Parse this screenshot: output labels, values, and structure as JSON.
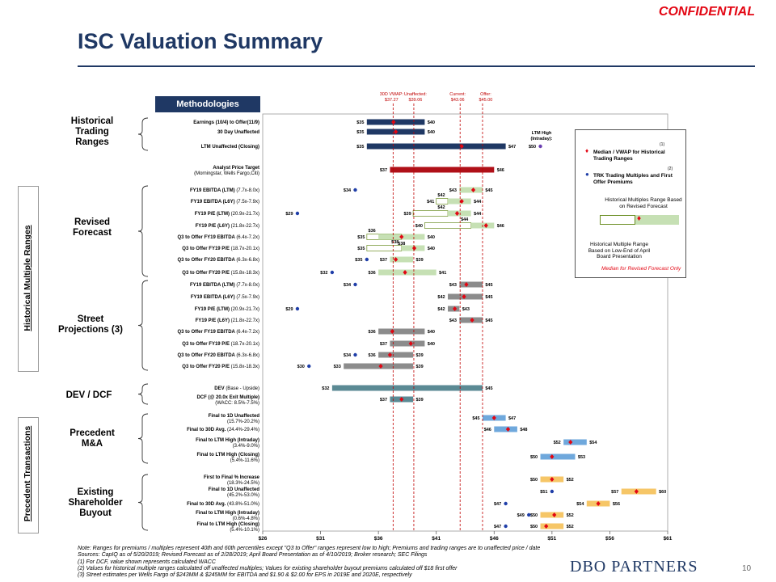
{
  "confidential": "CONFIDENTIAL",
  "title": "ISC Valuation Summary",
  "methodologies_label": "Methodologies",
  "side_labels": {
    "historical": "Historical Multiple Ranges",
    "precedent": "Precedent Transactions"
  },
  "groups": [
    {
      "id": "hist",
      "label": "Historical Trading Ranges"
    },
    {
      "id": "rev",
      "label": "Revised Forecast"
    },
    {
      "id": "street",
      "label": "Street Projections (3)"
    },
    {
      "id": "dcf",
      "label": "DEV / DCF"
    },
    {
      "id": "ma",
      "label": "Precedent M&A"
    },
    {
      "id": "buyout",
      "label": "Existing Shareholder Buyout"
    }
  ],
  "ref_lines": [
    {
      "label": "30D VWAP: $37.27",
      "value": 37.27
    },
    {
      "label": "Unaffected: $39.06",
      "value": 39.06
    },
    {
      "label": "Current: $43.06",
      "value": 43.06
    },
    {
      "label": "Offer: $45.00",
      "value": 45.0
    }
  ],
  "ltm_high_label": "LTM High (Intraday):",
  "legend": {
    "median_label": "Median / VWAP for Historical Trading Ranges",
    "median_sup": "(1)",
    "trk_label": "TRK Trading Multiples and First Offer Premiums",
    "trk_sup": "(2)",
    "revised_label": "Historical Multiples Range Based on Revised Forecast",
    "april_label": "Historical Multiple Range Based on Low-End of April Board Presentation",
    "median_note": "Median for Revised Forecast Only"
  },
  "notes": [
    "Note: Ranges for premiums / multiples represent 40th and 60th percentiles except \"Q3 to Offer\" ranges represent low to high; Premiums and trading ranges are to unaffected price / date",
    "Sources: CapIQ as of 5/20/2019; Revised Forecast as of 2/28/2019; April Board Presentation as of 4/10/2019; Broker research; SEC Filings",
    "(1)      For DCF, value shown represents calculated WACC",
    "(2)      Values for historical multiple ranges calculated off unaffected multiples; Values for existing shareholder buyout premiums calculated off $18 first offer",
    "(3)      Street estimates per Wells Fargo of $243MM & $245MM for EBITDA and $1.90 & $2.00 for EPS in 2019E and 2020E, respectively"
  ],
  "logo": "DBO PARTNERS",
  "page_number": "10",
  "chart_data": {
    "type": "bar",
    "orientation": "horizontal-range",
    "xlim": [
      26,
      61
    ],
    "x_ticks": [
      "$26",
      "$31",
      "$36",
      "$41",
      "$46",
      "$51",
      "$56",
      "$61"
    ],
    "x_tick_values": [
      26,
      31,
      36,
      41,
      46,
      51,
      56,
      61
    ],
    "colors": {
      "navy": "#1f3864",
      "red": "#b01018",
      "green": "#c6e0b4",
      "gray": "#8c8c8c",
      "teal": "#5b8a94",
      "blue": "#6fa8dc",
      "gold": "#f6c667",
      "median": "#e30613",
      "dot": "#1f3ea8"
    },
    "rows": [
      {
        "group": "hist",
        "label": "Earnings (10/4) to Offer(11/9)",
        "sub": "",
        "low": 35,
        "high": 40,
        "low_label": "$35",
        "high_label": "$40",
        "color": "navy",
        "median": 37.3,
        "dots": []
      },
      {
        "group": "hist",
        "label": "30 Day Unaffected",
        "sub": "",
        "low": 35,
        "high": 40,
        "low_label": "$35",
        "high_label": "$40",
        "color": "navy",
        "median": 37.5,
        "dots": []
      },
      {
        "group": "hist",
        "label": "LTM Unaffected (Closing)",
        "sub": "",
        "low": 35,
        "high": 47,
        "low_label": "$35",
        "high_label": "$47",
        "color": "navy",
        "median": 43.2,
        "dots": [
          {
            "value": 50,
            "label": "$50",
            "color": "#6a3fb0"
          }
        ]
      },
      {
        "group": "hist",
        "label": "Analyst Price Target",
        "sub": "(Morningstar, Wells Fargo,Citi)",
        "low": 37,
        "high": 46,
        "low_label": "$37",
        "high_label": "$46",
        "color": "red",
        "median": null,
        "dots": []
      },
      {
        "group": "rev",
        "label": "FY19 EBITDA (LTM)",
        "sub": "(7.7x-8.0x)",
        "low": 43,
        "high": 45,
        "low_label": "$43",
        "high_label": "$45",
        "color": "green",
        "median": 44.2,
        "dots": [
          {
            "value": 34,
            "label": "$34"
          }
        ]
      },
      {
        "group": "rev",
        "label": "FY19 EBITDA (L6Y)",
        "sub": "(7.5x-7.9x)",
        "low": 42,
        "high": 44,
        "low_label": "$42",
        "high_label": "$44",
        "color": "green",
        "median": 43.2,
        "dots": [],
        "april": [
          41,
          42
        ],
        "april_labels": [
          "$41",
          ""
        ]
      },
      {
        "group": "rev",
        "label": "FY19 P/E (LTM)",
        "sub": "(20.9x-21.7x)",
        "low": 42,
        "high": 44,
        "low_label": "$42",
        "high_label": "$44",
        "color": "green",
        "median": 42.8,
        "dots": [
          {
            "value": 29,
            "label": "$29"
          }
        ],
        "april": [
          39,
          42
        ],
        "april_labels": [
          "$39",
          ""
        ]
      },
      {
        "group": "rev",
        "label": "FY19 P/E (L6Y)",
        "sub": "(21.8x-22.7x)",
        "low": 44,
        "high": 46,
        "low_label": "$44",
        "high_label": "$46",
        "color": "green",
        "median": 45.3,
        "dots": [],
        "april": [
          40,
          44
        ],
        "april_labels": [
          "$40",
          ""
        ]
      },
      {
        "group": "rev",
        "label": "Q3 to Offer FY19 EBITDA",
        "sub": "(6.4x-7.2x)",
        "low": 36,
        "high": 40,
        "low_label": "$36",
        "high_label": "$40",
        "color": "green",
        "median": 38.0,
        "dots": [],
        "april": [
          35,
          38
        ],
        "april_labels": [
          "$35",
          "$38"
        ]
      },
      {
        "group": "rev",
        "label": "Q3 to Offer FY19 P/E",
        "sub": "(18.7x-20.1x)",
        "low": 38,
        "high": 40,
        "low_label": "$38",
        "high_label": "$40",
        "color": "green",
        "median": 39.1,
        "dots": [],
        "april": [
          35,
          38
        ],
        "april_labels": [
          "$35",
          ""
        ]
      },
      {
        "group": "rev",
        "label": "Q3 to Offer FY20 EBITDA",
        "sub": "(6.3x-6.8x)",
        "low": 37,
        "high": 39,
        "low_label": "$37",
        "high_label": "$39",
        "color": "green",
        "median": 37.5,
        "dots": [
          {
            "value": 35,
            "label": "$35"
          }
        ]
      },
      {
        "group": "rev",
        "label": "Q3 to Offer FY20 P/E",
        "sub": "(15.8x-18.3x)",
        "low": 36,
        "high": 41,
        "low_label": "$36",
        "high_label": "$41",
        "color": "green",
        "median": 38.3,
        "dots": [
          {
            "value": 32,
            "label": "$32"
          }
        ]
      },
      {
        "group": "street",
        "label": "FY19 EBITDA (LTM)",
        "sub": "(7.7x-8.0x)",
        "low": 43,
        "high": 45,
        "low_label": "$43",
        "high_label": "$45",
        "color": "gray",
        "median": 43.6,
        "dots": [
          {
            "value": 34,
            "label": "$34"
          }
        ]
      },
      {
        "group": "street",
        "label": "FY19 EBITDA (L6Y)",
        "sub": "(7.5x-7.9x)",
        "low": 42,
        "high": 45,
        "low_label": "$42",
        "high_label": "$45",
        "color": "gray",
        "median": 43.4,
        "dots": []
      },
      {
        "group": "street",
        "label": "FY19 P/E (LTM)",
        "sub": "(20.9x-21.7x)",
        "low": 42,
        "high": 43,
        "low_label": "$42",
        "high_label": "$43",
        "color": "gray",
        "median": 42.6,
        "dots": [
          {
            "value": 29,
            "label": "$29"
          }
        ]
      },
      {
        "group": "street",
        "label": "FY19 P/E (L6Y)",
        "sub": "(21.8x-22.7x)",
        "low": 43,
        "high": 45,
        "low_label": "$43",
        "high_label": "$45",
        "color": "gray",
        "median": 44.1,
        "dots": []
      },
      {
        "group": "street",
        "label": "Q3 to Offer FY19 EBITDA",
        "sub": "(6.4x-7.2x)",
        "low": 36,
        "high": 40,
        "low_label": "$36",
        "high_label": "$40",
        "color": "gray",
        "median": 37.2,
        "dots": []
      },
      {
        "group": "street",
        "label": "Q3 to Offer FY19 P/E",
        "sub": "(18.7x-20.1x)",
        "low": 37,
        "high": 40,
        "low_label": "$37",
        "high_label": "$40",
        "color": "gray",
        "median": 38.8,
        "dots": []
      },
      {
        "group": "street",
        "label": "Q3 to Offer FY20 EBITDA",
        "sub": "(6.3x-6.8x)",
        "low": 36,
        "high": 39,
        "low_label": "$36",
        "high_label": "$39",
        "color": "gray",
        "median": 37.0,
        "dots": [
          {
            "value": 34,
            "label": "$34"
          }
        ]
      },
      {
        "group": "street",
        "label": "Q3 to Offer FY20 P/E",
        "sub": "(15.8x-18.3x)",
        "low": 33,
        "high": 39,
        "low_label": "$33",
        "high_label": "$39",
        "color": "gray",
        "median": 36.2,
        "dots": [
          {
            "value": 30,
            "label": "$30"
          }
        ]
      },
      {
        "group": "dcf",
        "label": "DEV",
        "sub": "(Base - Upside)",
        "low": 32,
        "high": 45,
        "low_label": "$32",
        "high_label": "$45",
        "color": "teal",
        "median": null,
        "dots": []
      },
      {
        "group": "dcf",
        "label": "DCF (@ 20.0x Exit Multiple)",
        "sub": "(WACC: 8.5%-7.5%)",
        "low": 37,
        "high": 39,
        "low_label": "$37",
        "high_label": "$39",
        "color": "teal",
        "median": 38.0,
        "dots": []
      },
      {
        "group": "ma",
        "label": "Final to 1D Unaffected",
        "sub": "(15.7%-20.2%)",
        "low": 45,
        "high": 47,
        "low_label": "$45",
        "high_label": "$47",
        "color": "blue",
        "median": 46.0,
        "dots": []
      },
      {
        "group": "ma",
        "label": "Final to 30D Avg.",
        "sub": "(24.4%-29.4%)",
        "low": 46,
        "high": 48,
        "low_label": "$46",
        "high_label": "$48",
        "color": "blue",
        "median": 47.2,
        "dots": []
      },
      {
        "group": "ma",
        "label": "Final to LTM High (Intraday)",
        "sub": "(3.4%-9.0%)",
        "low": 52,
        "high": 54,
        "low_label": "$52",
        "high_label": "$54",
        "color": "blue",
        "median": 52.6,
        "dots": []
      },
      {
        "group": "ma",
        "label": "Final to LTM High (Closing)",
        "sub": "(5.4%-11.6%)",
        "low": 50,
        "high": 53,
        "low_label": "$50",
        "high_label": "$53",
        "color": "blue",
        "median": 51.0,
        "dots": []
      },
      {
        "group": "buyout",
        "label": "First to Final % Increase",
        "sub": "(18.3%-24.5%)",
        "low": 50,
        "high": 52,
        "low_label": "$50",
        "high_label": "$52",
        "color": "gold",
        "median": 51.0,
        "dots": []
      },
      {
        "group": "buyout",
        "label": "Final to 1D Unaffected",
        "sub": "(45.2%-53.0%)",
        "low": 57,
        "high": 60,
        "low_label": "$57",
        "high_label": "$60",
        "color": "gold",
        "median": 58.3,
        "dots": [
          {
            "value": 51,
            "label": "$51"
          }
        ]
      },
      {
        "group": "buyout",
        "label": "Final to 30D Avg.",
        "sub": "(43.8%-51.0%)",
        "low": 54,
        "high": 56,
        "low_label": "$54",
        "high_label": "$56",
        "color": "gold",
        "median": 55.0,
        "dots": [
          {
            "value": 47,
            "label": "$47"
          }
        ]
      },
      {
        "group": "buyout",
        "label": "Final to LTM High (Intraday)",
        "sub": "(0.6%-4.8%)",
        "low": 50,
        "high": 52,
        "low_label": "$50",
        "high_label": "$52",
        "color": "gold",
        "median": 51.2,
        "dots": [
          {
            "value": 49,
            "label": "$49"
          }
        ]
      },
      {
        "group": "buyout",
        "label": "Final to LTM High (Closing)",
        "sub": "(5.4%-10.1%)",
        "low": 50,
        "high": 52,
        "low_label": "$50",
        "high_label": "$52",
        "color": "gold",
        "median": 50.5,
        "dots": [
          {
            "value": 47,
            "label": "$47"
          }
        ]
      }
    ]
  }
}
